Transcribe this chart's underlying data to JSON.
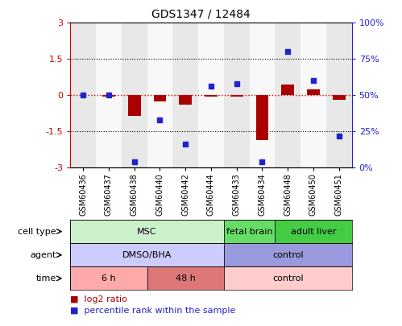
{
  "title": "GDS1347 / 12484",
  "samples": [
    "GSM60436",
    "GSM60437",
    "GSM60438",
    "GSM60440",
    "GSM60442",
    "GSM60444",
    "GSM60433",
    "GSM60434",
    "GSM60448",
    "GSM60450",
    "GSM60451"
  ],
  "log2_ratio": [
    0.0,
    -0.05,
    -0.85,
    -0.25,
    -0.38,
    -0.07,
    -0.05,
    -1.85,
    0.45,
    0.25,
    -0.18
  ],
  "percentile_rank": [
    50,
    50,
    4,
    33,
    16,
    56,
    58,
    4,
    80,
    60,
    22
  ],
  "ylim_left": [
    -3,
    3
  ],
  "ylim_right": [
    0,
    100
  ],
  "bar_color": "#aa0000",
  "dot_color": "#2222cc",
  "zero_line_color": "#cc0000",
  "cell_type_groups": [
    {
      "label": "MSC",
      "start": 0,
      "end": 6,
      "color": "#ccf0cc",
      "border_color": "#888888"
    },
    {
      "label": "fetal brain",
      "start": 6,
      "end": 8,
      "color": "#66dd66",
      "border_color": "#888888"
    },
    {
      "label": "adult liver",
      "start": 8,
      "end": 11,
      "color": "#44cc44",
      "border_color": "#888888"
    }
  ],
  "agent_groups": [
    {
      "label": "DMSO/BHA",
      "start": 0,
      "end": 6,
      "color": "#ccccff",
      "border_color": "#888888"
    },
    {
      "label": "control",
      "start": 6,
      "end": 11,
      "color": "#9999dd",
      "border_color": "#888888"
    }
  ],
  "time_groups": [
    {
      "label": "6 h",
      "start": 0,
      "end": 3,
      "color": "#ffaaaa",
      "border_color": "#888888"
    },
    {
      "label": "48 h",
      "start": 3,
      "end": 6,
      "color": "#dd7777",
      "border_color": "#888888"
    },
    {
      "label": "control",
      "start": 6,
      "end": 11,
      "color": "#ffcccc",
      "border_color": "#888888"
    }
  ],
  "row_labels": [
    "cell type",
    "agent",
    "time"
  ],
  "background_color": "#ffffff"
}
